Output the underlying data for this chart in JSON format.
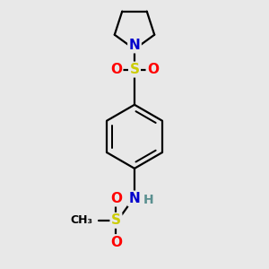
{
  "bg_color": "#e8e8e8",
  "atom_colors": {
    "N": "#0000cc",
    "S": "#cccc00",
    "O": "#ff0000",
    "H": "#5a9090"
  },
  "line_color": "#000000",
  "line_width": 1.6,
  "figsize": [
    3.0,
    3.0
  ],
  "dpi": 100,
  "font_size": 11,
  "font_size_h": 10
}
